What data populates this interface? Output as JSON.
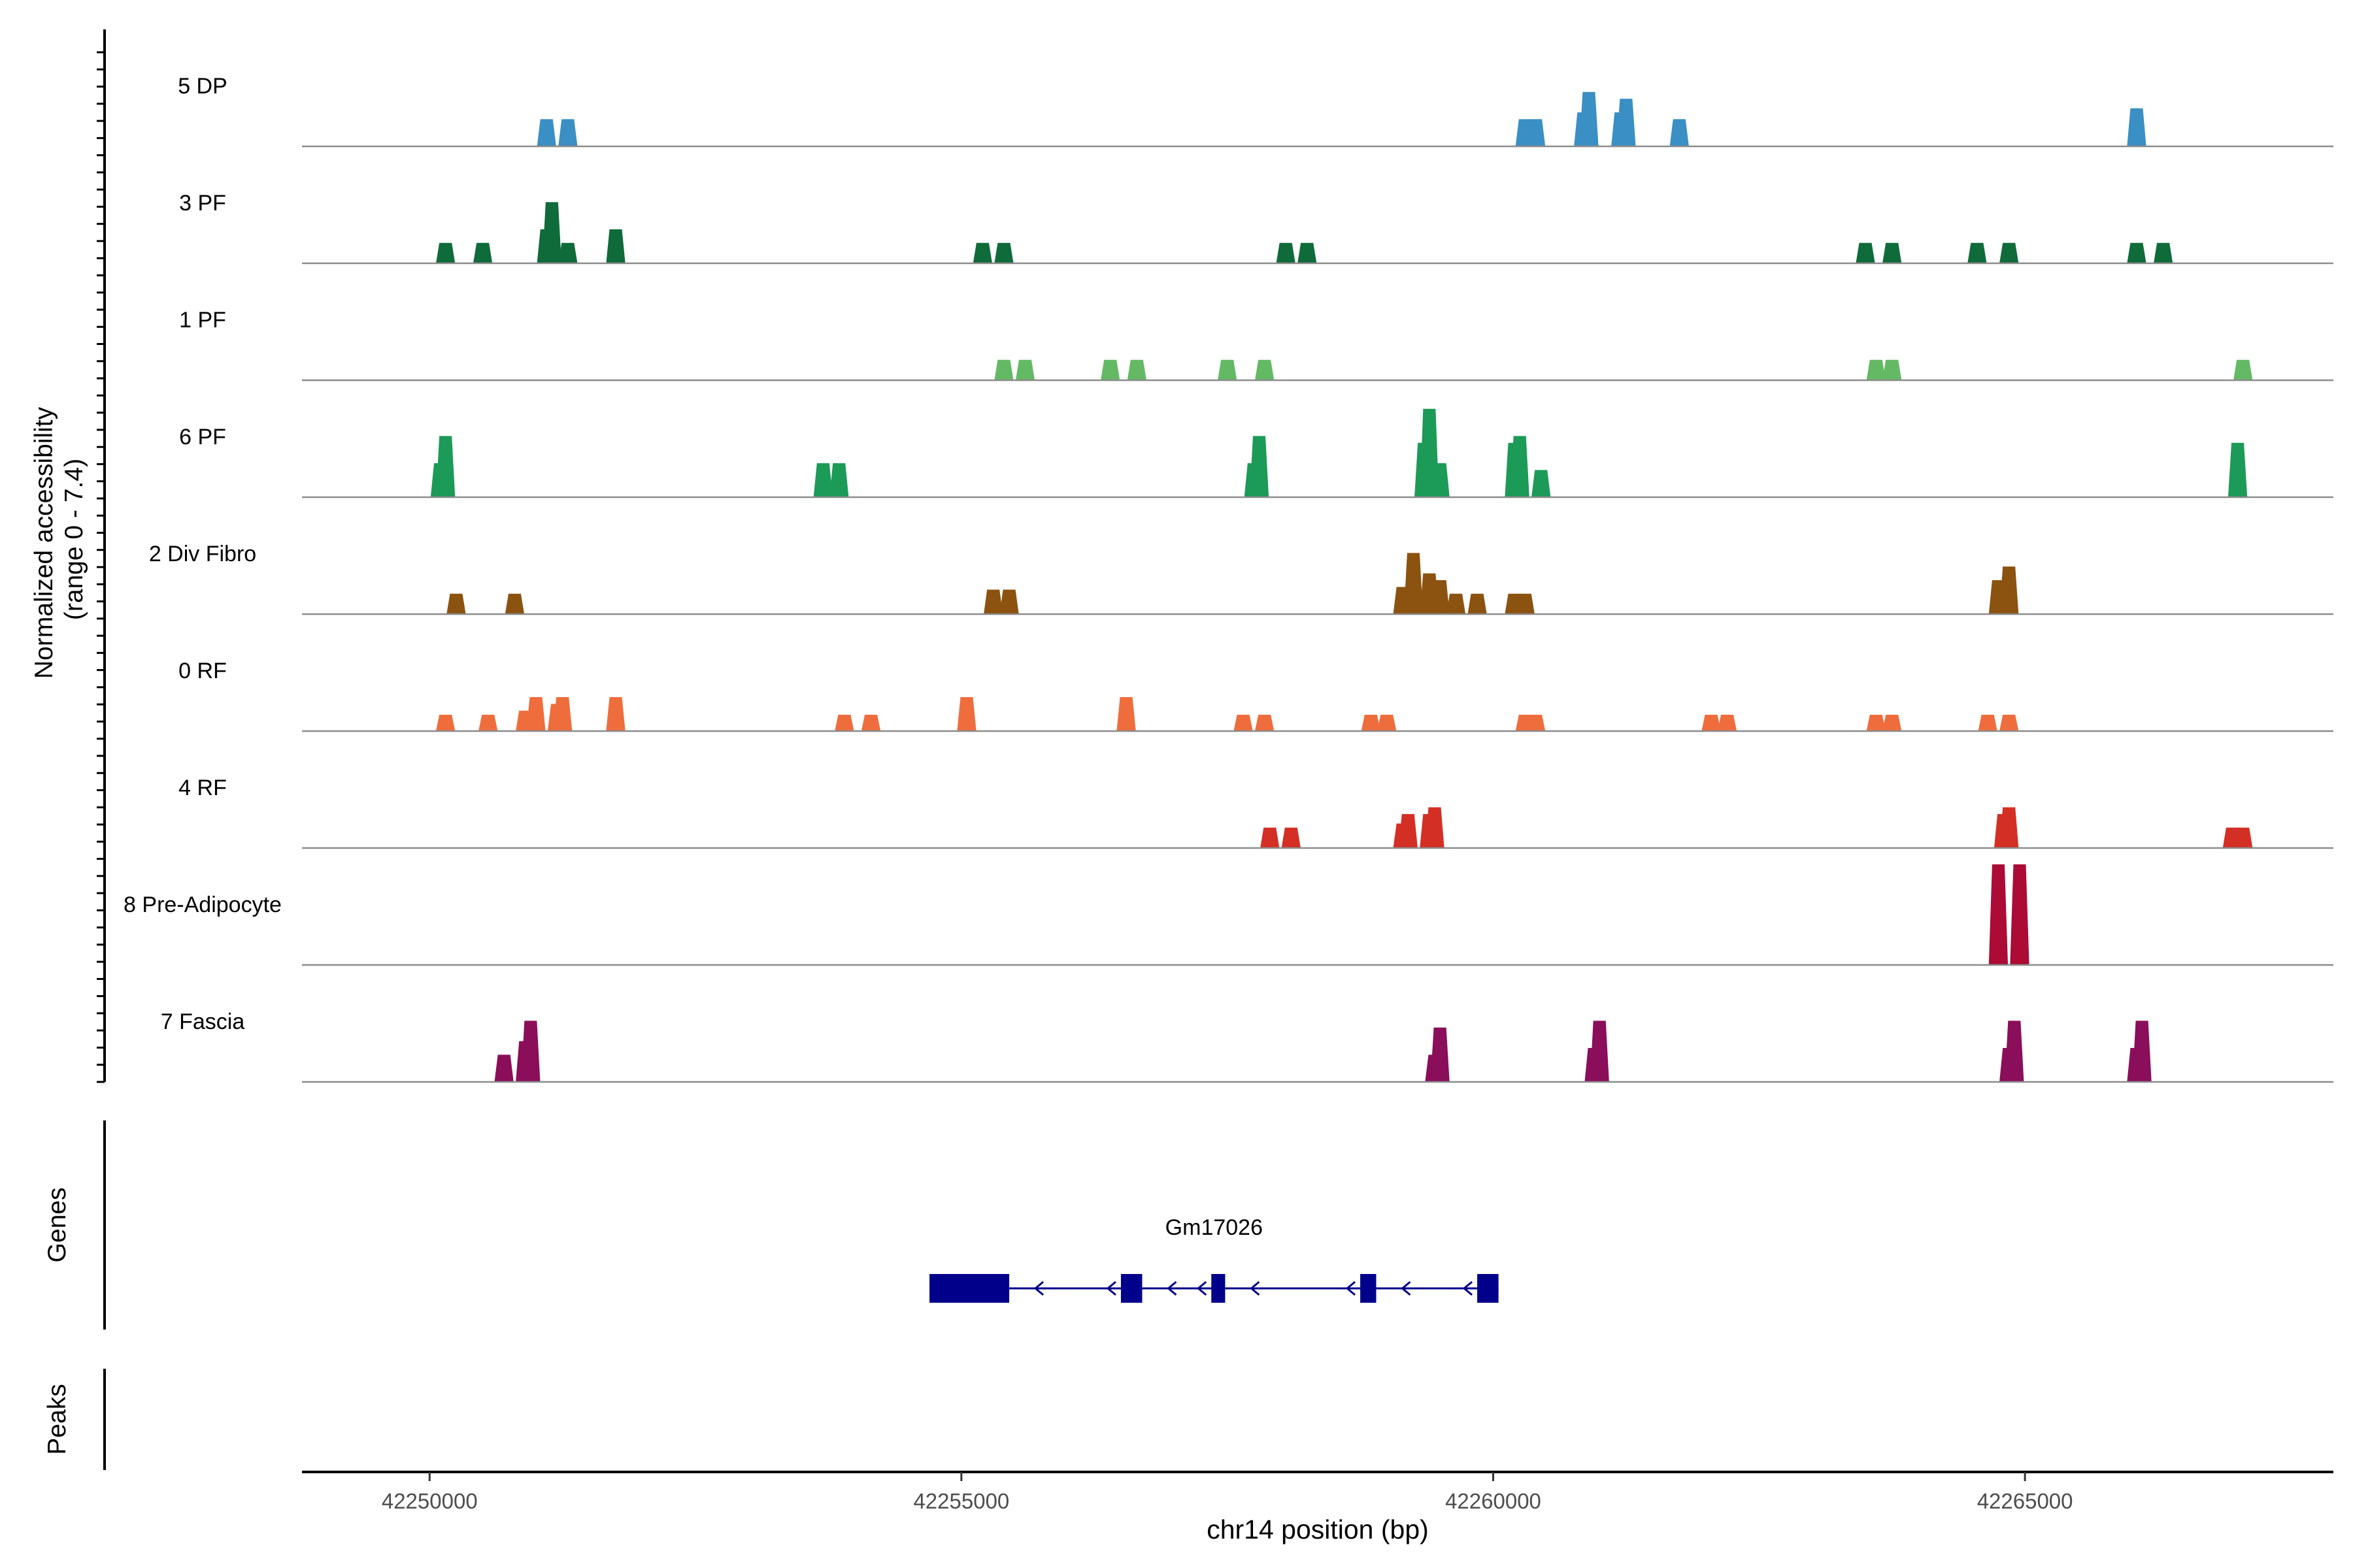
{
  "chart_data": {
    "type": "area",
    "ylabel_line1": "Normalized accessibility",
    "ylabel_line2": "(range 0 - 7.4)",
    "ylim": [
      0,
      7.4
    ],
    "xlim": [
      42248800,
      42267900
    ],
    "xlabel": "chr14 position (bp)",
    "xticks": [
      42250000,
      42255000,
      42260000,
      42265000
    ],
    "xtick_labels": [
      "42250000",
      "42255000",
      "42260000",
      "42265000"
    ],
    "genes_label": "Genes",
    "peaks_label": "Peaks",
    "tracks": [
      {
        "name": "5 DP",
        "color": "#3a8fc4",
        "peaks": [
          [
            42251100,
            2.0
          ],
          [
            42251300,
            2.0
          ],
          [
            42260300,
            2.0
          ],
          [
            42260400,
            2.0
          ],
          [
            42260850,
            2.5
          ],
          [
            42260900,
            4.0
          ],
          [
            42261200,
            2.5
          ],
          [
            42261250,
            3.5
          ],
          [
            42261750,
            2.0
          ],
          [
            42266050,
            2.8
          ]
        ]
      },
      {
        "name": "3 PF",
        "color": "#0f6b3a",
        "peaks": [
          [
            42250150,
            1.5
          ],
          [
            42250500,
            1.5
          ],
          [
            42251100,
            2.5
          ],
          [
            42251150,
            4.5
          ],
          [
            42251300,
            1.5
          ],
          [
            42251750,
            2.5
          ],
          [
            42255200,
            1.5
          ],
          [
            42255400,
            1.5
          ],
          [
            42258050,
            1.5
          ],
          [
            42258250,
            1.5
          ],
          [
            42263500,
            1.5
          ],
          [
            42263750,
            1.5
          ],
          [
            42264550,
            1.5
          ],
          [
            42264850,
            1.5
          ],
          [
            42266050,
            1.5
          ],
          [
            42266300,
            1.5
          ]
        ]
      },
      {
        "name": "1 PF",
        "color": "#64b965",
        "peaks": [
          [
            42255400,
            1.5
          ],
          [
            42255600,
            1.5
          ],
          [
            42256400,
            1.5
          ],
          [
            42256650,
            1.5
          ],
          [
            42257500,
            1.5
          ],
          [
            42257850,
            1.5
          ],
          [
            42263600,
            1.5
          ],
          [
            42263750,
            1.5
          ],
          [
            42267050,
            1.5
          ]
        ]
      },
      {
        "name": "6 PF",
        "color": "#1c9a57",
        "peaks": [
          [
            42250100,
            2.5
          ],
          [
            42250150,
            4.5
          ],
          [
            42253700,
            2.5
          ],
          [
            42253850,
            2.5
          ],
          [
            42257750,
            2.5
          ],
          [
            42257800,
            4.5
          ],
          [
            42259350,
            4.0
          ],
          [
            42259400,
            6.5
          ],
          [
            42259500,
            2.5
          ],
          [
            42260200,
            4.0
          ],
          [
            42260250,
            4.5
          ],
          [
            42260450,
            2.0
          ],
          [
            42267000,
            4.0
          ]
        ]
      },
      {
        "name": "2 Div Fibro",
        "color": "#8b5210",
        "peaks": [
          [
            42250250,
            1.5
          ],
          [
            42250800,
            1.5
          ],
          [
            42255300,
            1.8
          ],
          [
            42255450,
            1.8
          ],
          [
            42259150,
            2.0
          ],
          [
            42259250,
            4.5
          ],
          [
            42259400,
            3.0
          ],
          [
            42259500,
            2.5
          ],
          [
            42259650,
            1.5
          ],
          [
            42259850,
            1.5
          ],
          [
            42260200,
            1.5
          ],
          [
            42260300,
            1.5
          ],
          [
            42264750,
            2.5
          ],
          [
            42264850,
            3.5
          ]
        ]
      },
      {
        "name": "0 RF",
        "color": "#ef6d3d",
        "peaks": [
          [
            42250150,
            1.2
          ],
          [
            42250550,
            1.2
          ],
          [
            42250900,
            1.5
          ],
          [
            42251000,
            2.5
          ],
          [
            42251200,
            2.0
          ],
          [
            42251250,
            2.5
          ],
          [
            42251750,
            2.5
          ],
          [
            42253900,
            1.2
          ],
          [
            42254150,
            1.2
          ],
          [
            42255050,
            2.5
          ],
          [
            42256550,
            2.5
          ],
          [
            42257650,
            1.2
          ],
          [
            42257850,
            1.2
          ],
          [
            42258850,
            1.2
          ],
          [
            42259000,
            1.2
          ],
          [
            42260300,
            1.2
          ],
          [
            42260400,
            1.2
          ],
          [
            42262050,
            1.2
          ],
          [
            42262200,
            1.2
          ],
          [
            42263600,
            1.2
          ],
          [
            42263750,
            1.2
          ],
          [
            42264650,
            1.2
          ],
          [
            42264850,
            1.2
          ]
        ]
      },
      {
        "name": "4 RF",
        "color": "#d42f24",
        "peaks": [
          [
            42257900,
            1.5
          ],
          [
            42258100,
            1.5
          ],
          [
            42259150,
            1.8
          ],
          [
            42259200,
            2.5
          ],
          [
            42259400,
            2.5
          ],
          [
            42259450,
            3.0
          ],
          [
            42264800,
            2.5
          ],
          [
            42264850,
            3.0
          ],
          [
            42266950,
            1.5
          ],
          [
            42267050,
            1.5
          ]
        ]
      },
      {
        "name": "8 Pre-Adipocyte",
        "color": "#ab0b35",
        "peaks": [
          [
            42264750,
            7.4
          ],
          [
            42264950,
            7.4
          ]
        ]
      },
      {
        "name": "7 Fascia",
        "color": "#8a0e5a",
        "peaks": [
          [
            42250700,
            2.0
          ],
          [
            42250900,
            3.0
          ],
          [
            42250950,
            4.5
          ],
          [
            42259450,
            2.0
          ],
          [
            42259500,
            4.0
          ],
          [
            42260950,
            2.5
          ],
          [
            42261000,
            4.5
          ],
          [
            42264850,
            2.5
          ],
          [
            42264900,
            4.5
          ],
          [
            42266050,
            2.5
          ],
          [
            42266100,
            4.5
          ]
        ]
      }
    ],
    "gene": {
      "name": "Gm17026",
      "color": "#00008b",
      "start": 42254700,
      "end": 42260050,
      "strand": "-",
      "exons": [
        [
          42254700,
          42255450
        ],
        [
          42256500,
          42256700
        ],
        [
          42257350,
          42257480
        ],
        [
          42258750,
          42258900
        ],
        [
          42259850,
          42260050
        ]
      ]
    }
  }
}
